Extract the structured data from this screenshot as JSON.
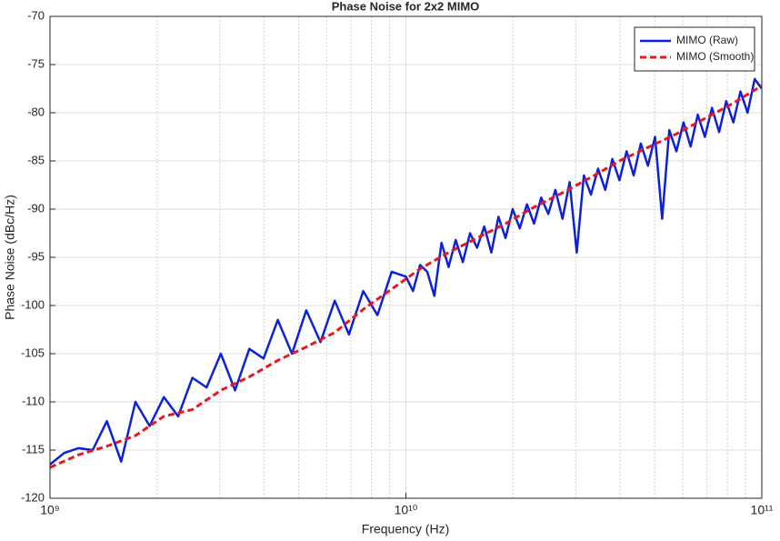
{
  "chart_data": {
    "type": "line",
    "title": "Phase Noise for 2x2 MIMO",
    "xlabel": "Frequency (Hz)",
    "ylabel": "Phase Noise (dBc/Hz)",
    "xscale": "log",
    "xlim": [
      1000000000.0,
      100000000000.0
    ],
    "ylim": [
      -120,
      -70
    ],
    "xticks": [
      {
        "value": 1000000000.0,
        "label": "10⁹"
      },
      {
        "value": 10000000000.0,
        "label": "10¹⁰"
      },
      {
        "value": 100000000000.0,
        "label": "10¹¹"
      }
    ],
    "xminorticks": [
      2000000000.0,
      3000000000.0,
      4000000000.0,
      5000000000.0,
      6000000000.0,
      7000000000.0,
      8000000000.0,
      9000000000.0,
      20000000000.0,
      30000000000.0,
      40000000000.0,
      50000000000.0,
      60000000000.0,
      70000000000.0,
      80000000000.0,
      90000000000.0
    ],
    "yticks": [
      -120,
      -115,
      -110,
      -105,
      -100,
      -95,
      -90,
      -85,
      -80,
      -75,
      -70
    ],
    "grid": true,
    "legend": "upper right",
    "series": [
      {
        "name": "MIMO (Raw)",
        "color": "#0d22d8",
        "dash": "solid",
        "x": [
          1000000000.0,
          1096000000.0,
          1202000000.0,
          1318000000.0,
          1445000000.0,
          1585000000.0,
          1738000000.0,
          1905000000.0,
          2089000000.0,
          2291000000.0,
          2512000000.0,
          2754000000.0,
          3020000000.0,
          3311000000.0,
          3631000000.0,
          3981000000.0,
          4365000000.0,
          4786000000.0,
          5248000000.0,
          5754000000.0,
          6310000000.0,
          6918000000.0,
          7586000000.0,
          8318000000.0,
          9120000000.0,
          10000000000.0,
          10470000000.0,
          10960000000.0,
          11480000000.0,
          12020000000.0,
          12590000000.0,
          13180000000.0,
          13800000000.0,
          14450000000.0,
          15140000000.0,
          15850000000.0,
          16600000000.0,
          17380000000.0,
          18200000000.0,
          19050000000.0,
          19950000000.0,
          20890000000.0,
          21880000000.0,
          22910000000.0,
          23990000000.0,
          25120000000.0,
          26300000000.0,
          27540000000.0,
          28840000000.0,
          30200000000.0,
          31620000000.0,
          33110000000.0,
          34670000000.0,
          36310000000.0,
          38020000000.0,
          39810000000.0,
          41690000000.0,
          43650000000.0,
          45710000000.0,
          47860000000.0,
          50120000000.0,
          52480000000.0,
          54950000000.0,
          57540000000.0,
          60260000000.0,
          63100000000.0,
          66070000000.0,
          69180000000.0,
          72440000000.0,
          75860000000.0,
          79430000000.0,
          83180000000.0,
          87100000000.0,
          91200000000.0,
          95500000000.0,
          100000000000.0
        ],
        "values": [
          -116.5,
          -115.3,
          -114.8,
          -115.0,
          -112.0,
          -116.2,
          -110.0,
          -112.5,
          -109.5,
          -111.5,
          -107.5,
          -108.5,
          -105.0,
          -108.8,
          -104.5,
          -105.5,
          -101.5,
          -105.0,
          -100.5,
          -103.8,
          -99.5,
          -103.0,
          -98.5,
          -101.0,
          -96.5,
          -97.0,
          -98.5,
          -95.8,
          -96.5,
          -99.0,
          -93.5,
          -96.0,
          -93.2,
          -95.5,
          -92.5,
          -94.0,
          -91.8,
          -94.5,
          -90.8,
          -93.0,
          -90.0,
          -92.0,
          -89.5,
          -91.5,
          -88.8,
          -90.5,
          -88.0,
          -91.0,
          -87.2,
          -94.5,
          -86.5,
          -88.5,
          -85.8,
          -88.0,
          -84.8,
          -87.0,
          -84.0,
          -86.5,
          -83.2,
          -85.5,
          -82.5,
          -91.0,
          -81.8,
          -84.0,
          -81.0,
          -83.5,
          -80.2,
          -82.5,
          -79.5,
          -82.0,
          -78.8,
          -81.0,
          -77.8,
          -80.0,
          -76.5,
          -77.5
        ]
      },
      {
        "name": "MIMO (Smooth)",
        "color": "#e8191c",
        "dash": "dashed",
        "x": [
          1000000000.0,
          1202000000.0,
          1445000000.0,
          1738000000.0,
          2089000000.0,
          2512000000.0,
          3020000000.0,
          3631000000.0,
          4365000000.0,
          5248000000.0,
          6310000000.0,
          7586000000.0,
          9120000000.0,
          10960000000.0,
          13180000000.0,
          15850000000.0,
          19050000000.0,
          22910000000.0,
          27540000000.0,
          33110000000.0,
          39810000000.0,
          47860000000.0,
          57540000000.0,
          69180000000.0,
          83180000000.0,
          100000000000.0
        ],
        "values": [
          -116.8,
          -115.5,
          -114.6,
          -113.5,
          -111.5,
          -110.8,
          -108.8,
          -107.4,
          -105.7,
          -104.3,
          -102.8,
          -100.4,
          -98.3,
          -96.2,
          -94.5,
          -93.0,
          -91.5,
          -89.8,
          -88.3,
          -86.7,
          -85.0,
          -83.6,
          -82.2,
          -80.6,
          -79.0,
          -77.2
        ]
      }
    ]
  }
}
